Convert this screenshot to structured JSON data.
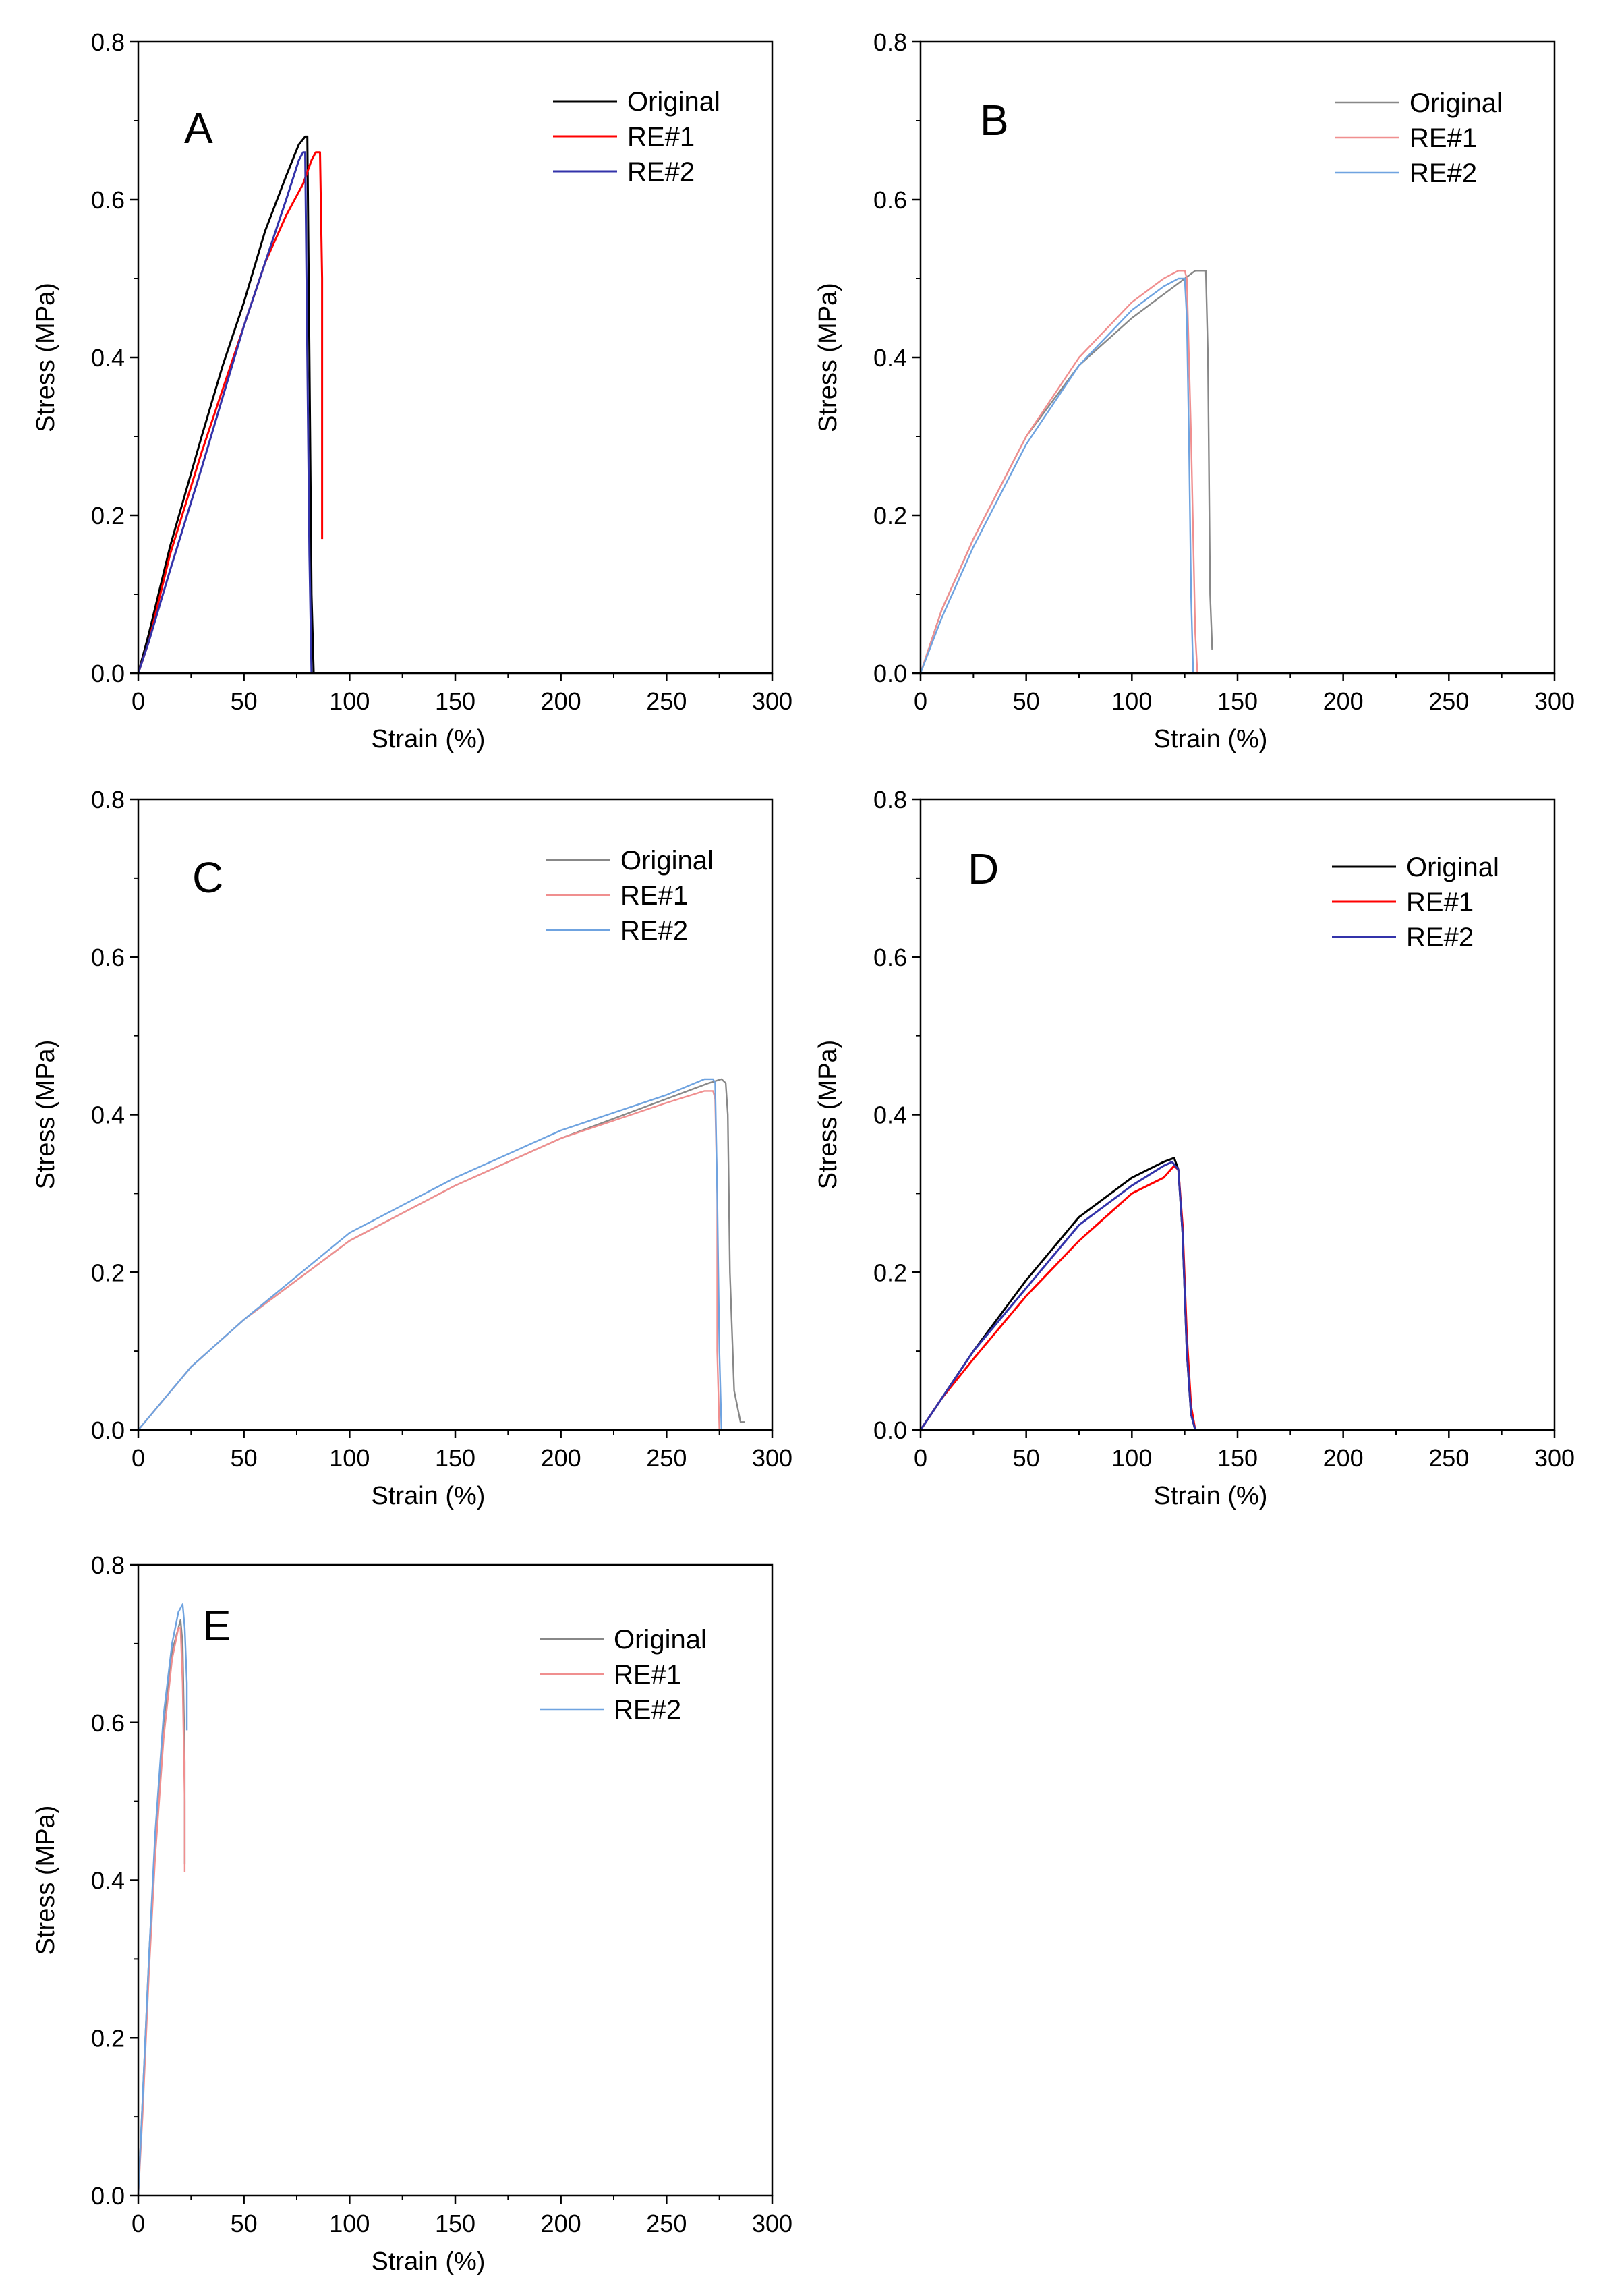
{
  "figure": {
    "series_colors": {
      "dark": {
        "Original": "#000000",
        "RE#1": "#ff0000",
        "RE#2": "#3333aa"
      },
      "light": {
        "Original": "#888888",
        "RE#1": "#f08f8f",
        "RE#2": "#6fa3e0"
      }
    }
  },
  "chart_data": [
    {
      "panel": "A",
      "type": "line",
      "xlabel": "Strain (%)",
      "ylabel": "Stress (MPa)",
      "xlim": [
        0,
        300
      ],
      "ylim": [
        0,
        0.8
      ],
      "xticks": [
        0,
        50,
        100,
        150,
        200,
        250,
        300
      ],
      "yticks": [
        0.0,
        0.2,
        0.4,
        0.6,
        0.8
      ],
      "xtick_labels": [
        "0",
        "50",
        "100",
        "150",
        "200",
        "250",
        "300"
      ],
      "ytick_labels": [
        "0.0",
        "0.2",
        "0.4",
        "0.6",
        "0.8"
      ],
      "grid": false,
      "legend_position": "top-right",
      "color_style": "dark",
      "series": [
        {
          "name": "Original",
          "x": [
            0,
            5,
            15,
            30,
            40,
            50,
            60,
            70,
            76,
            79,
            80,
            81,
            82,
            83
          ],
          "y": [
            0,
            0.05,
            0.16,
            0.3,
            0.39,
            0.47,
            0.56,
            0.63,
            0.67,
            0.68,
            0.68,
            0.4,
            0.1,
            0.0
          ]
        },
        {
          "name": "RE#1",
          "x": [
            0,
            5,
            15,
            30,
            40,
            50,
            60,
            70,
            78,
            82,
            84,
            86,
            87,
            87
          ],
          "y": [
            0,
            0.04,
            0.15,
            0.28,
            0.36,
            0.44,
            0.52,
            0.58,
            0.62,
            0.65,
            0.66,
            0.66,
            0.5,
            0.17
          ]
        },
        {
          "name": "RE#2",
          "x": [
            0,
            5,
            15,
            30,
            40,
            50,
            60,
            70,
            76,
            78,
            79,
            80,
            81,
            82
          ],
          "y": [
            0,
            0.04,
            0.13,
            0.26,
            0.35,
            0.44,
            0.52,
            0.6,
            0.65,
            0.66,
            0.66,
            0.4,
            0.15,
            0.0
          ]
        }
      ]
    },
    {
      "panel": "B",
      "type": "line",
      "xlabel": "Strain (%)",
      "ylabel": "Stress (MPa)",
      "xlim": [
        0,
        300
      ],
      "ylim": [
        0,
        0.8
      ],
      "xticks": [
        0,
        50,
        100,
        150,
        200,
        250,
        300
      ],
      "yticks": [
        0.0,
        0.2,
        0.4,
        0.6,
        0.8
      ],
      "xtick_labels": [
        "0",
        "50",
        "100",
        "150",
        "200",
        "250",
        "300"
      ],
      "ytick_labels": [
        "0.0",
        "0.2",
        "0.4",
        "0.6",
        "0.8"
      ],
      "grid": false,
      "legend_position": "top-right",
      "color_style": "light",
      "series": [
        {
          "name": "Original",
          "x": [
            0,
            10,
            25,
            50,
            75,
            100,
            120,
            130,
            133,
            135,
            136,
            137,
            138
          ],
          "y": [
            0,
            0.08,
            0.17,
            0.3,
            0.39,
            0.45,
            0.49,
            0.51,
            0.51,
            0.51,
            0.4,
            0.1,
            0.03
          ]
        },
        {
          "name": "RE#1",
          "x": [
            0,
            10,
            25,
            50,
            75,
            100,
            115,
            122,
            125,
            126,
            128,
            130,
            131
          ],
          "y": [
            0,
            0.08,
            0.17,
            0.3,
            0.4,
            0.47,
            0.5,
            0.51,
            0.51,
            0.5,
            0.3,
            0.05,
            0.0
          ]
        },
        {
          "name": "RE#2",
          "x": [
            0,
            10,
            25,
            50,
            75,
            100,
            115,
            122,
            125,
            126,
            127,
            128,
            129
          ],
          "y": [
            0,
            0.07,
            0.16,
            0.29,
            0.39,
            0.46,
            0.49,
            0.5,
            0.5,
            0.45,
            0.3,
            0.1,
            0.0
          ]
        }
      ]
    },
    {
      "panel": "C",
      "type": "line",
      "xlabel": "Strain (%)",
      "ylabel": "Stress (MPa)",
      "xlim": [
        0,
        300
      ],
      "ylim": [
        0,
        0.8
      ],
      "xticks": [
        0,
        50,
        100,
        150,
        200,
        250,
        300
      ],
      "yticks": [
        0.0,
        0.2,
        0.4,
        0.6,
        0.8
      ],
      "xtick_labels": [
        "0",
        "50",
        "100",
        "150",
        "200",
        "250",
        "300"
      ],
      "ytick_labels": [
        "0.0",
        "0.2",
        "0.4",
        "0.6",
        "0.8"
      ],
      "grid": false,
      "legend_position": "top-right",
      "color_style": "light",
      "series": [
        {
          "name": "Original",
          "x": [
            0,
            25,
            50,
            100,
            150,
            200,
            250,
            270,
            276,
            278,
            279,
            280,
            282,
            285,
            287
          ],
          "y": [
            0,
            0.08,
            0.14,
            0.24,
            0.31,
            0.37,
            0.42,
            0.44,
            0.445,
            0.44,
            0.4,
            0.2,
            0.05,
            0.01,
            0.01
          ]
        },
        {
          "name": "RE#1",
          "x": [
            0,
            25,
            50,
            100,
            150,
            200,
            250,
            268,
            272,
            273,
            274,
            274,
            275
          ],
          "y": [
            0,
            0.08,
            0.14,
            0.24,
            0.31,
            0.37,
            0.415,
            0.43,
            0.43,
            0.42,
            0.3,
            0.1,
            0.0
          ]
        },
        {
          "name": "RE#2",
          "x": [
            0,
            25,
            50,
            100,
            150,
            200,
            250,
            268,
            272,
            273,
            274,
            275,
            276
          ],
          "y": [
            0,
            0.08,
            0.14,
            0.25,
            0.32,
            0.38,
            0.425,
            0.445,
            0.445,
            0.44,
            0.3,
            0.1,
            0.0
          ]
        }
      ]
    },
    {
      "panel": "D",
      "type": "line",
      "xlabel": "Strain (%)",
      "ylabel": "Stress (MPa)",
      "xlim": [
        0,
        300
      ],
      "ylim": [
        0,
        0.8
      ],
      "xticks": [
        0,
        50,
        100,
        150,
        200,
        250,
        300
      ],
      "yticks": [
        0.0,
        0.2,
        0.4,
        0.6,
        0.8
      ],
      "xtick_labels": [
        "0",
        "50",
        "100",
        "150",
        "200",
        "250",
        "300"
      ],
      "ytick_labels": [
        "0.0",
        "0.2",
        "0.4",
        "0.6",
        "0.8"
      ],
      "grid": false,
      "legend_position": "top-right",
      "color_style": "dark",
      "series": [
        {
          "name": "Original",
          "x": [
            0,
            10,
            25,
            50,
            75,
            100,
            115,
            120,
            122,
            124,
            126,
            128,
            130
          ],
          "y": [
            0,
            0.04,
            0.1,
            0.19,
            0.27,
            0.32,
            0.34,
            0.345,
            0.33,
            0.25,
            0.1,
            0.02,
            0.0
          ]
        },
        {
          "name": "RE#1",
          "x": [
            0,
            10,
            25,
            50,
            75,
            100,
            115,
            120,
            122,
            124,
            126,
            128,
            130
          ],
          "y": [
            0,
            0.04,
            0.09,
            0.17,
            0.24,
            0.3,
            0.32,
            0.335,
            0.33,
            0.26,
            0.12,
            0.03,
            0.0
          ]
        },
        {
          "name": "RE#2",
          "x": [
            0,
            10,
            25,
            50,
            75,
            100,
            115,
            119,
            122,
            124,
            126,
            128,
            130
          ],
          "y": [
            0,
            0.04,
            0.1,
            0.18,
            0.26,
            0.31,
            0.335,
            0.34,
            0.33,
            0.25,
            0.1,
            0.02,
            0.0
          ]
        }
      ]
    },
    {
      "panel": "E",
      "type": "line",
      "xlabel": "Strain (%)",
      "ylabel": "Stress (MPa)",
      "xlim": [
        0,
        300
      ],
      "ylim": [
        0,
        0.8
      ],
      "xticks": [
        0,
        50,
        100,
        150,
        200,
        250,
        300
      ],
      "yticks": [
        0.0,
        0.2,
        0.4,
        0.6,
        0.8
      ],
      "xtick_labels": [
        "0",
        "50",
        "100",
        "150",
        "200",
        "250",
        "300"
      ],
      "ytick_labels": [
        "0.0",
        "0.2",
        "0.4",
        "0.6",
        "0.8"
      ],
      "grid": false,
      "legend_position": "top-right",
      "color_style": "light",
      "series": [
        {
          "name": "Original",
          "x": [
            0,
            2,
            5,
            8,
            12,
            16,
            19,
            20,
            21,
            22,
            22
          ],
          "y": [
            0,
            0.12,
            0.3,
            0.45,
            0.6,
            0.69,
            0.72,
            0.73,
            0.7,
            0.55,
            0.42
          ]
        },
        {
          "name": "RE#1",
          "x": [
            0,
            2,
            5,
            8,
            12,
            16,
            19,
            20,
            21,
            22,
            22
          ],
          "y": [
            0,
            0.1,
            0.28,
            0.43,
            0.58,
            0.68,
            0.72,
            0.72,
            0.65,
            0.5,
            0.41
          ]
        },
        {
          "name": "RE#2",
          "x": [
            0,
            2,
            5,
            8,
            12,
            16,
            19,
            21,
            22,
            23,
            23
          ],
          "y": [
            0,
            0.12,
            0.3,
            0.46,
            0.61,
            0.7,
            0.74,
            0.75,
            0.72,
            0.65,
            0.59
          ]
        }
      ]
    }
  ]
}
